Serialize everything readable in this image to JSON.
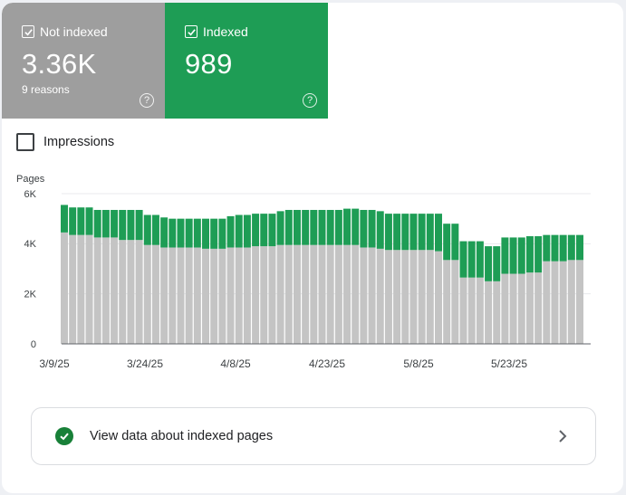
{
  "tiles": {
    "not_indexed": {
      "label": "Not indexed",
      "value": "3.36K",
      "sub": "9 reasons",
      "color": "#9e9e9e",
      "help_icon": "help-icon"
    },
    "indexed": {
      "label": "Indexed",
      "value": "989",
      "color": "#1e9d55",
      "help_icon": "help-icon"
    }
  },
  "impressions": {
    "label": "Impressions",
    "checked": false
  },
  "view_link": {
    "label": "View data about indexed pages",
    "icon": "check-circle-icon",
    "chevron": "chevron-right-icon"
  },
  "colors": {
    "not_indexed": "#c4c4c4",
    "indexed": "#1e9d55",
    "grid": "#e8eaed"
  },
  "chart_data": {
    "type": "bar",
    "stacked": true,
    "ylabel": "Pages",
    "ylim": [
      0,
      6000
    ],
    "y_ticks": [
      "0",
      "2K",
      "4K",
      "6K"
    ],
    "x_tick_labels": [
      "3/9/25",
      "3/24/25",
      "4/8/25",
      "4/23/25",
      "5/8/25",
      "5/23/25"
    ],
    "grid": true,
    "series": [
      {
        "name": "Not indexed",
        "values": [
          4450,
          4350,
          4350,
          4350,
          4250,
          4250,
          4250,
          4150,
          4150,
          4150,
          3950,
          3950,
          3850,
          3850,
          3850,
          3850,
          3850,
          3800,
          3800,
          3800,
          3850,
          3850,
          3850,
          3900,
          3900,
          3900,
          3950,
          3950,
          3950,
          3950,
          3950,
          3950,
          3950,
          3950,
          3950,
          3950,
          3850,
          3850,
          3800,
          3750,
          3750,
          3750,
          3750,
          3750,
          3750,
          3700,
          3350,
          3350,
          2650,
          2650,
          2650,
          2500,
          2500,
          2800,
          2800,
          2800,
          2850,
          2850,
          3300,
          3300,
          3300,
          3350,
          3350
        ]
      },
      {
        "name": "Indexed",
        "values": [
          1100,
          1100,
          1100,
          1100,
          1100,
          1100,
          1100,
          1200,
          1200,
          1200,
          1200,
          1200,
          1200,
          1150,
          1150,
          1150,
          1150,
          1200,
          1200,
          1200,
          1250,
          1300,
          1300,
          1300,
          1300,
          1300,
          1350,
          1400,
          1400,
          1400,
          1400,
          1400,
          1400,
          1400,
          1450,
          1450,
          1500,
          1500,
          1500,
          1450,
          1450,
          1450,
          1450,
          1450,
          1450,
          1500,
          1450,
          1450,
          1450,
          1450,
          1450,
          1400,
          1400,
          1450,
          1450,
          1450,
          1450,
          1450,
          1050,
          1050,
          1050,
          1000,
          1000
        ]
      }
    ]
  }
}
